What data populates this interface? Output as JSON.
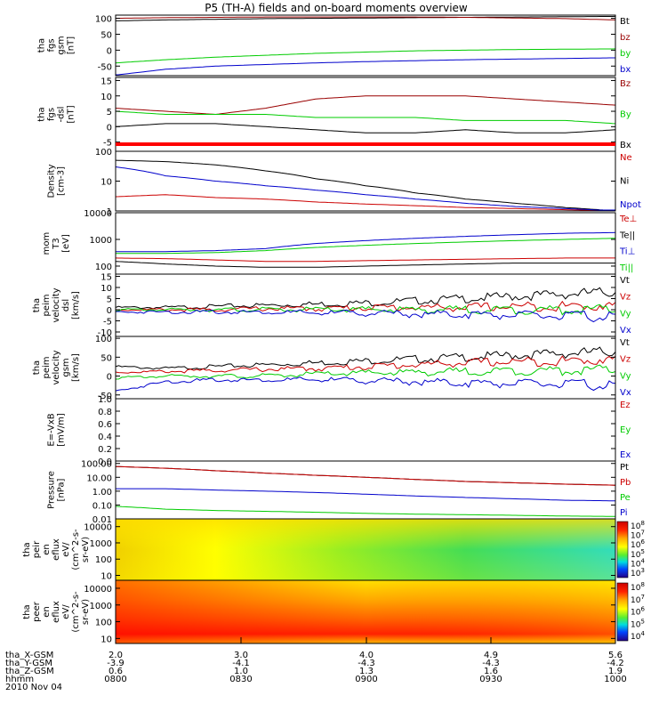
{
  "title": "P5 (TH-A) fields and on-board moments overview",
  "colors": {
    "black": "#000000",
    "red": "#cc0000",
    "green": "#00cc00",
    "blue": "#0000cc",
    "darkred": "#990000"
  },
  "chart_data": [
    {
      "type": "line",
      "panel": "fgs_gsm",
      "ylabel": [
        "tha",
        "fgs",
        "gsm",
        "[nT]"
      ],
      "yticks": [
        "100",
        "50",
        "0",
        "-50"
      ],
      "ylim": [
        -80,
        110
      ],
      "series": [
        {
          "name": "Bt",
          "color": "black",
          "values": [
            92,
            95,
            97,
            99,
            100,
            101,
            102,
            103,
            104,
            105,
            106
          ]
        },
        {
          "name": "bz",
          "color": "darkred",
          "values": [
            100,
            102,
            103,
            104,
            104,
            104,
            104,
            103,
            101,
            99,
            95
          ]
        },
        {
          "name": "by",
          "color": "green",
          "values": [
            -40,
            -30,
            -22,
            -16,
            -10,
            -6,
            -2,
            0,
            2,
            3,
            4
          ]
        },
        {
          "name": "bx",
          "color": "blue",
          "values": [
            -78,
            -60,
            -50,
            -45,
            -40,
            -36,
            -33,
            -30,
            -28,
            -26,
            -24
          ]
        }
      ]
    },
    {
      "type": "line",
      "panel": "fgs_dsl",
      "ylabel": [
        "tha",
        "fgs",
        "-dsl",
        "[nT]"
      ],
      "yticks": [
        "15",
        "10",
        "5",
        "0",
        "-5"
      ],
      "ylim": [
        -8,
        16
      ],
      "series": [
        {
          "name": "Bz",
          "color": "darkred",
          "values": [
            6,
            5,
            4,
            6,
            9,
            10,
            10,
            10,
            9,
            8,
            7
          ]
        },
        {
          "name": "By",
          "color": "green",
          "values": [
            5,
            4,
            4,
            4,
            3,
            3,
            3,
            2,
            2,
            2,
            1
          ]
        },
        {
          "name": "Bx",
          "color": "black",
          "values": [
            0,
            1,
            1,
            0,
            -1,
            -2,
            -2,
            -1,
            -2,
            -2,
            -1
          ]
        }
      ]
    },
    {
      "type": "line",
      "panel": "density",
      "ylabel": [
        "Density",
        "[cm-3]"
      ],
      "yticks": [
        "100",
        "10",
        "1"
      ],
      "ylim": [
        1,
        100
      ],
      "log": true,
      "series": [
        {
          "name": "Ne",
          "color": "red",
          "values": [
            3,
            3.5,
            2.8,
            2.5,
            2,
            1.7,
            1.5,
            1.3,
            1.2,
            1.1,
            1.0
          ]
        },
        {
          "name": "Ni",
          "color": "black",
          "values": [
            50,
            45,
            35,
            22,
            12,
            7,
            4,
            2.5,
            1.8,
            1.3,
            1.0
          ]
        },
        {
          "name": "Npot",
          "color": "blue",
          "values": [
            30,
            15,
            10,
            7,
            5,
            3.5,
            2.5,
            1.8,
            1.4,
            1.2,
            1.0
          ]
        }
      ]
    },
    {
      "type": "line",
      "panel": "temperature",
      "ylabel": [
        "mom",
        "T3",
        "[eV]"
      ],
      "yticks": [
        "10000",
        "1000",
        "100"
      ],
      "ylim": [
        50,
        10000
      ],
      "log": true,
      "series": [
        {
          "name": "Te⊥",
          "color": "red",
          "values": [
            200,
            190,
            170,
            150,
            150,
            160,
            170,
            180,
            190,
            200,
            200
          ]
        },
        {
          "name": "Te||",
          "color": "black",
          "values": [
            150,
            120,
            100,
            90,
            90,
            100,
            110,
            120,
            130,
            130,
            130
          ]
        },
        {
          "name": "Ti⊥",
          "color": "blue",
          "values": [
            350,
            350,
            380,
            450,
            700,
            900,
            1100,
            1300,
            1500,
            1700,
            1800
          ]
        },
        {
          "name": "Ti||",
          "color": "green",
          "values": [
            300,
            300,
            320,
            380,
            500,
            600,
            700,
            800,
            900,
            1000,
            1100
          ]
        }
      ]
    },
    {
      "type": "line",
      "panel": "velocity_dsl",
      "ylabel": [
        "tha",
        "peim",
        "velocity",
        "dsl",
        "[km/s]"
      ],
      "yticks": [
        "15",
        "10",
        "5",
        "0",
        "-5",
        "-10"
      ],
      "ylim": [
        -12,
        16
      ],
      "series": [
        {
          "name": "Vt",
          "color": "black",
          "values": [
            1,
            1,
            1.5,
            2,
            2.5,
            3,
            4,
            5,
            6,
            7,
            8
          ]
        },
        {
          "name": "Vz",
          "color": "red",
          "values": [
            0,
            0,
            0,
            0.5,
            0.5,
            1,
            1,
            1,
            1.5,
            1.5,
            2
          ]
        },
        {
          "name": "Vy",
          "color": "green",
          "values": [
            0,
            0,
            0,
            0,
            0,
            0,
            0,
            0,
            0,
            0,
            0
          ]
        },
        {
          "name": "Vx",
          "color": "blue",
          "values": [
            -1,
            -1,
            -1,
            -1,
            -1.5,
            -1.5,
            -2,
            -2,
            -2.5,
            -3,
            -3
          ]
        }
      ]
    },
    {
      "type": "line",
      "panel": "velocity_gsm",
      "ylabel": [
        "tha",
        "peim",
        "velocity",
        "gsm",
        "[km/s]"
      ],
      "yticks": [
        "100",
        "50",
        "0",
        "-50"
      ],
      "ylim": [
        -60,
        105
      ],
      "series": [
        {
          "name": "Vt",
          "color": "black",
          "values": [
            25,
            20,
            25,
            30,
            35,
            40,
            45,
            50,
            55,
            60,
            65
          ]
        },
        {
          "name": "Vz",
          "color": "red",
          "values": [
            10,
            12,
            15,
            18,
            20,
            25,
            30,
            35,
            38,
            40,
            45
          ]
        },
        {
          "name": "Vy",
          "color": "green",
          "values": [
            -5,
            0,
            0,
            0,
            5,
            8,
            10,
            12,
            14,
            15,
            16
          ]
        },
        {
          "name": "Vx",
          "color": "blue",
          "values": [
            -40,
            -15,
            -10,
            -10,
            -10,
            -12,
            -15,
            -18,
            -20,
            -22,
            -25
          ]
        }
      ]
    },
    {
      "type": "line",
      "panel": "efield",
      "ylabel": [
        "E=-VxB",
        "[mV/m]"
      ],
      "yticks": [
        "1.0",
        "0.8",
        "0.6",
        "0.4",
        "0.2",
        "0.0"
      ],
      "ylim": [
        0,
        1
      ],
      "series": [
        {
          "name": "Ez",
          "color": "red",
          "values": []
        },
        {
          "name": "Ey",
          "color": "green",
          "values": []
        },
        {
          "name": "Ex",
          "color": "blue",
          "values": []
        }
      ]
    },
    {
      "type": "line",
      "panel": "pressure",
      "ylabel": [
        "Pressure",
        "[nPa]"
      ],
      "yticks": [
        "100.00",
        "10.00",
        "1.00",
        "0.10",
        "0.01"
      ],
      "ylim": [
        0.01,
        150
      ],
      "log": true,
      "series": [
        {
          "name": "Pt",
          "color": "black",
          "values": [
            60,
            45,
            30,
            20,
            14,
            10,
            7,
            5,
            4,
            3.2,
            2.7
          ]
        },
        {
          "name": "Pb",
          "color": "red",
          "values": [
            60,
            45,
            30,
            20,
            14,
            10,
            7,
            5,
            4,
            3.2,
            2.7
          ]
        },
        {
          "name": "Pe",
          "color": "green",
          "values": [
            0.08,
            0.05,
            0.04,
            0.035,
            0.03,
            0.025,
            0.022,
            0.02,
            0.018,
            0.016,
            0.015
          ]
        },
        {
          "name": "Pi",
          "color": "blue",
          "values": [
            1.5,
            1.5,
            1.2,
            1.0,
            0.8,
            0.6,
            0.45,
            0.35,
            0.28,
            0.22,
            0.2
          ]
        }
      ]
    },
    {
      "type": "heatmap",
      "panel": "peir_en_eflux",
      "ylabel": [
        "tha",
        "peir",
        "en",
        "eflux",
        "eV/",
        "(cm^2-s-",
        "sr-eV)"
      ],
      "yticks": [
        "10000",
        "1000",
        "100",
        "10"
      ],
      "ylim": [
        5,
        30000
      ],
      "colorbar": [
        "10^8",
        "10^7",
        "10^6",
        "10^5",
        "10^4",
        "10^3"
      ]
    },
    {
      "type": "heatmap",
      "panel": "peer_en_eflux",
      "ylabel": [
        "tha",
        "peer",
        "en",
        "eflux",
        "eV/",
        "(cm^2-s-",
        "sr-eV)"
      ],
      "yticks": [
        "10000",
        "1000",
        "100",
        "10"
      ],
      "ylim": [
        5,
        30000
      ],
      "colorbar": [
        "10^8",
        "10^7",
        "10^6",
        "10^5",
        "10^4"
      ]
    }
  ],
  "xaxis": {
    "rows": [
      {
        "label": "tha_X-GSM",
        "values": [
          "2.0",
          "3.0",
          "4.0",
          "4.9",
          "5.6"
        ]
      },
      {
        "label": "tha_Y-GSM",
        "values": [
          "-3.9",
          "-4.1",
          "-4.3",
          "-4.3",
          "-4.2"
        ]
      },
      {
        "label": "tha_Z-GSM",
        "values": [
          "0.6",
          "1.0",
          "1.3",
          "1.6",
          "1.9"
        ]
      },
      {
        "label": "hhmm",
        "values": [
          "0800",
          "0830",
          "0900",
          "0930",
          "1000"
        ]
      }
    ],
    "date": "2010 Nov 04"
  }
}
